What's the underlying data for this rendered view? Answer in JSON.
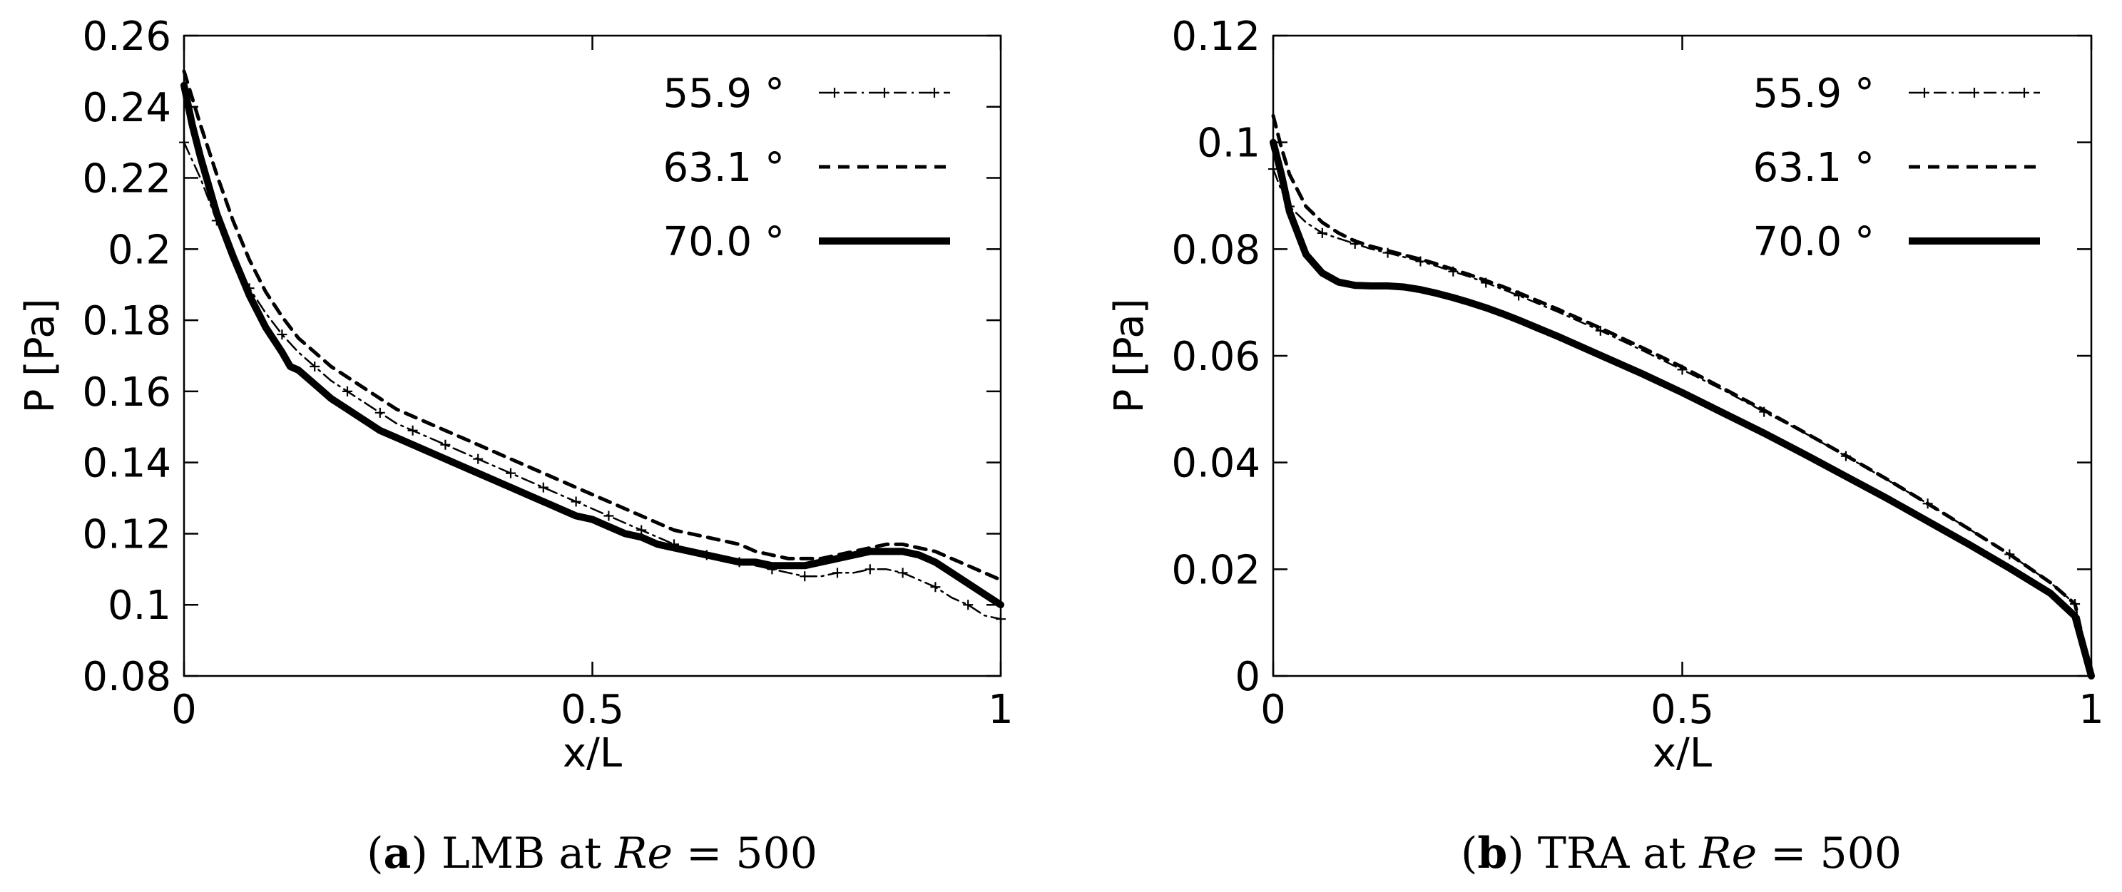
{
  "chart_data": [
    {
      "type": "line",
      "panel_label": "a",
      "caption_text": "LMB at",
      "caption_var": "Re",
      "caption_eq": " = 500",
      "xlabel": "x/L",
      "ylabel": "P [Pa]",
      "xlim": [
        0,
        1
      ],
      "ylim": [
        0.08,
        0.26
      ],
      "xticks": [
        0,
        0.5,
        1
      ],
      "xtick_labels": [
        "0",
        "0.5",
        "1"
      ],
      "yticks": [
        0.08,
        0.1,
        0.12,
        0.14,
        0.16,
        0.18,
        0.2,
        0.22,
        0.24,
        0.26
      ],
      "ytick_labels": [
        "0.08",
        "0.1",
        "0.12",
        "0.14",
        "0.16",
        "0.18",
        "0.2",
        "0.22",
        "0.24",
        "0.26"
      ],
      "legend_position": "top-right",
      "series": [
        {
          "name": "55.9 °",
          "style": "dash-dot-plus",
          "x": [
            0,
            0.02,
            0.04,
            0.06,
            0.08,
            0.1,
            0.12,
            0.14,
            0.16,
            0.18,
            0.2,
            0.22,
            0.24,
            0.26,
            0.28,
            0.3,
            0.32,
            0.34,
            0.36,
            0.38,
            0.4,
            0.42,
            0.44,
            0.46,
            0.48,
            0.5,
            0.52,
            0.54,
            0.56,
            0.58,
            0.6,
            0.62,
            0.64,
            0.66,
            0.68,
            0.7,
            0.72,
            0.74,
            0.76,
            0.78,
            0.8,
            0.82,
            0.84,
            0.86,
            0.88,
            0.9,
            0.92,
            0.94,
            0.96,
            0.98,
            1.0
          ],
          "values": [
            0.23,
            0.22,
            0.208,
            0.198,
            0.189,
            0.182,
            0.176,
            0.171,
            0.167,
            0.163,
            0.16,
            0.157,
            0.154,
            0.151,
            0.149,
            0.147,
            0.145,
            0.143,
            0.141,
            0.139,
            0.137,
            0.135,
            0.133,
            0.131,
            0.129,
            0.127,
            0.125,
            0.123,
            0.121,
            0.119,
            0.117,
            0.115,
            0.114,
            0.113,
            0.112,
            0.111,
            0.11,
            0.109,
            0.108,
            0.108,
            0.109,
            0.109,
            0.11,
            0.11,
            0.109,
            0.107,
            0.105,
            0.102,
            0.1,
            0.097,
            0.096
          ]
        },
        {
          "name": "63.1 °",
          "style": "dashed",
          "x": [
            0,
            0.02,
            0.04,
            0.06,
            0.08,
            0.1,
            0.12,
            0.14,
            0.16,
            0.18,
            0.2,
            0.22,
            0.24,
            0.26,
            0.28,
            0.3,
            0.32,
            0.34,
            0.36,
            0.38,
            0.4,
            0.42,
            0.44,
            0.46,
            0.48,
            0.5,
            0.52,
            0.54,
            0.56,
            0.58,
            0.6,
            0.62,
            0.64,
            0.66,
            0.68,
            0.7,
            0.72,
            0.74,
            0.76,
            0.78,
            0.8,
            0.82,
            0.84,
            0.86,
            0.88,
            0.9,
            0.92,
            0.94,
            0.96,
            0.98,
            1.0
          ],
          "values": [
            0.25,
            0.235,
            0.221,
            0.208,
            0.197,
            0.188,
            0.181,
            0.175,
            0.171,
            0.167,
            0.164,
            0.161,
            0.158,
            0.155,
            0.153,
            0.151,
            0.149,
            0.147,
            0.145,
            0.143,
            0.141,
            0.139,
            0.137,
            0.135,
            0.133,
            0.131,
            0.129,
            0.127,
            0.125,
            0.123,
            0.121,
            0.12,
            0.119,
            0.118,
            0.117,
            0.115,
            0.114,
            0.113,
            0.113,
            0.113,
            0.114,
            0.115,
            0.116,
            0.117,
            0.117,
            0.116,
            0.115,
            0.113,
            0.111,
            0.109,
            0.107
          ]
        },
        {
          "name": "70.0 °",
          "style": "solid-thick",
          "x": [
            0,
            0.01,
            0.02,
            0.04,
            0.06,
            0.08,
            0.1,
            0.12,
            0.13,
            0.14,
            0.16,
            0.18,
            0.2,
            0.22,
            0.24,
            0.26,
            0.28,
            0.3,
            0.32,
            0.34,
            0.36,
            0.38,
            0.4,
            0.42,
            0.44,
            0.46,
            0.48,
            0.5,
            0.52,
            0.54,
            0.56,
            0.58,
            0.6,
            0.62,
            0.64,
            0.66,
            0.68,
            0.7,
            0.72,
            0.74,
            0.76,
            0.78,
            0.8,
            0.82,
            0.84,
            0.86,
            0.88,
            0.9,
            0.92,
            0.94,
            0.96,
            0.98,
            1.0
          ],
          "values": [
            0.246,
            0.235,
            0.226,
            0.21,
            0.198,
            0.187,
            0.178,
            0.171,
            0.167,
            0.166,
            0.162,
            0.158,
            0.155,
            0.152,
            0.149,
            0.147,
            0.145,
            0.143,
            0.141,
            0.139,
            0.137,
            0.135,
            0.133,
            0.131,
            0.129,
            0.127,
            0.125,
            0.124,
            0.122,
            0.12,
            0.119,
            0.117,
            0.116,
            0.115,
            0.114,
            0.113,
            0.112,
            0.112,
            0.111,
            0.111,
            0.111,
            0.112,
            0.113,
            0.114,
            0.115,
            0.115,
            0.115,
            0.114,
            0.112,
            0.109,
            0.106,
            0.103,
            0.1
          ]
        }
      ]
    },
    {
      "type": "line",
      "panel_label": "b",
      "caption_text": "TRA at",
      "caption_var": "Re",
      "caption_eq": " = 500",
      "xlabel": "x/L",
      "ylabel": "P [Pa]",
      "xlim": [
        0,
        1
      ],
      "ylim": [
        0,
        0.12
      ],
      "xticks": [
        0,
        0.5,
        1
      ],
      "xtick_labels": [
        "0",
        "0.5",
        "1"
      ],
      "yticks": [
        0,
        0.02,
        0.04,
        0.06,
        0.08,
        0.1,
        0.12
      ],
      "ytick_labels": [
        "0",
        "0.02",
        "0.04",
        "0.06",
        "0.08",
        "0.1",
        "0.12"
      ],
      "legend_position": "top-right",
      "series": [
        {
          "name": "55.9 °",
          "style": "dash-dot-plus",
          "x": [
            0,
            0.01,
            0.02,
            0.04,
            0.06,
            0.08,
            0.1,
            0.12,
            0.14,
            0.16,
            0.18,
            0.2,
            0.22,
            0.24,
            0.26,
            0.28,
            0.3,
            0.35,
            0.4,
            0.45,
            0.5,
            0.55,
            0.6,
            0.65,
            0.7,
            0.75,
            0.8,
            0.85,
            0.9,
            0.95,
            0.98,
            1.0
          ],
          "values": [
            0.095,
            0.091,
            0.088,
            0.085,
            0.083,
            0.082,
            0.081,
            0.08,
            0.0793,
            0.0785,
            0.0777,
            0.0768,
            0.0758,
            0.0748,
            0.0737,
            0.0725,
            0.0713,
            0.0681,
            0.0647,
            0.0611,
            0.0574,
            0.0536,
            0.0495,
            0.0455,
            0.0412,
            0.0368,
            0.0323,
            0.0276,
            0.0228,
            0.0175,
            0.0135,
            0.0
          ]
        },
        {
          "name": "63.1 °",
          "style": "dashed",
          "x": [
            0,
            0.01,
            0.02,
            0.04,
            0.06,
            0.08,
            0.1,
            0.12,
            0.14,
            0.16,
            0.18,
            0.2,
            0.22,
            0.24,
            0.26,
            0.28,
            0.3,
            0.35,
            0.4,
            0.45,
            0.5,
            0.55,
            0.6,
            0.65,
            0.7,
            0.75,
            0.8,
            0.85,
            0.9,
            0.95,
            0.98,
            1.0
          ],
          "values": [
            0.105,
            0.099,
            0.094,
            0.088,
            0.085,
            0.083,
            0.0815,
            0.0805,
            0.0797,
            0.0789,
            0.0781,
            0.0772,
            0.0762,
            0.0752,
            0.0741,
            0.073,
            0.0718,
            0.0686,
            0.0652,
            0.0616,
            0.0579,
            0.0539,
            0.0498,
            0.0456,
            0.0413,
            0.0369,
            0.0323,
            0.0276,
            0.0228,
            0.0175,
            0.0135,
            0.0
          ]
        },
        {
          "name": "70.0 °",
          "style": "solid-thick",
          "x": [
            0,
            0.01,
            0.02,
            0.04,
            0.06,
            0.08,
            0.1,
            0.12,
            0.14,
            0.16,
            0.18,
            0.2,
            0.22,
            0.24,
            0.26,
            0.28,
            0.3,
            0.35,
            0.4,
            0.45,
            0.5,
            0.55,
            0.6,
            0.65,
            0.7,
            0.75,
            0.8,
            0.85,
            0.9,
            0.95,
            0.98,
            1.0
          ],
          "values": [
            0.1,
            0.094,
            0.087,
            0.079,
            0.0755,
            0.0738,
            0.0732,
            0.0731,
            0.0731,
            0.0729,
            0.0724,
            0.0717,
            0.0709,
            0.07,
            0.069,
            0.0679,
            0.0667,
            0.0635,
            0.0601,
            0.0567,
            0.0531,
            0.0493,
            0.0455,
            0.0415,
            0.0374,
            0.0333,
            0.029,
            0.0247,
            0.0202,
            0.0155,
            0.0112,
            0.0
          ]
        }
      ]
    }
  ]
}
